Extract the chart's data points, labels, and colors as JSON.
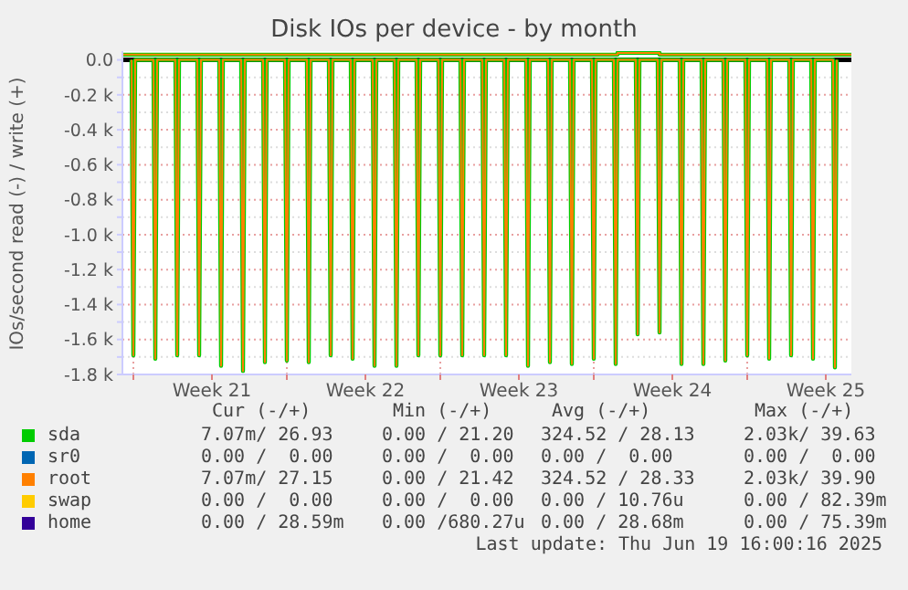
{
  "chart_data": {
    "type": "line",
    "title": "Disk IOs per device - by month",
    "ylabel": "IOs/second read (-) / write (+)",
    "x": [
      "2025-05-18T22:00",
      "2025-05-19T00:00",
      "2025-05-19T02:00",
      "2025-05-19T22:00",
      "2025-05-20T00:00",
      "2025-05-20T02:00",
      "2025-05-20T22:00",
      "2025-05-21T00:00",
      "2025-05-21T02:00",
      "2025-05-21T22:00",
      "2025-05-22T00:00",
      "2025-05-22T02:00",
      "2025-05-22T22:00",
      "2025-05-23T00:00",
      "2025-05-23T02:00",
      "2025-05-23T22:00",
      "2025-05-24T00:00",
      "2025-05-24T02:00",
      "2025-05-24T22:00",
      "2025-05-25T00:00",
      "2025-05-25T02:00",
      "2025-05-25T22:00",
      "2025-05-26T00:00",
      "2025-05-26T02:00",
      "2025-05-26T22:00",
      "2025-05-27T00:00",
      "2025-05-27T02:00",
      "2025-05-27T22:00",
      "2025-05-28T00:00",
      "2025-05-28T02:00",
      "2025-05-28T22:00",
      "2025-05-29T00:00",
      "2025-05-29T02:00",
      "2025-05-29T22:00",
      "2025-05-30T00:00",
      "2025-05-30T02:00",
      "2025-05-30T22:00",
      "2025-05-31T00:00",
      "2025-05-31T02:00",
      "2025-05-31T22:00",
      "2025-06-01T00:00",
      "2025-06-01T02:00",
      "2025-06-01T22:00",
      "2025-06-02T00:00",
      "2025-06-02T02:00",
      "2025-06-02T22:00",
      "2025-06-03T00:00",
      "2025-06-03T02:00",
      "2025-06-03T22:00",
      "2025-06-04T00:00",
      "2025-06-04T02:00",
      "2025-06-04T22:00",
      "2025-06-05T00:00",
      "2025-06-05T02:00",
      "2025-06-05T22:00",
      "2025-06-06T00:00",
      "2025-06-06T02:00",
      "2025-06-06T22:00",
      "2025-06-07T00:00",
      "2025-06-07T02:00",
      "2025-06-07T22:00",
      "2025-06-08T00:00",
      "2025-06-08T02:00",
      "2025-06-08T22:00",
      "2025-06-09T00:00",
      "2025-06-09T02:00",
      "2025-06-09T22:00",
      "2025-06-10T00:00",
      "2025-06-10T02:00",
      "2025-06-10T22:00",
      "2025-06-11T00:00",
      "2025-06-11T02:00",
      "2025-06-11T22:00",
      "2025-06-12T00:00",
      "2025-06-12T02:00",
      "2025-06-12T22:00",
      "2025-06-13T00:00",
      "2025-06-13T02:00",
      "2025-06-13T22:00",
      "2025-06-14T00:00",
      "2025-06-14T02:00",
      "2025-06-14T22:00",
      "2025-06-15T00:00",
      "2025-06-15T02:00",
      "2025-06-15T22:00",
      "2025-06-16T00:00",
      "2025-06-16T02:00",
      "2025-06-16T22:00",
      "2025-06-17T00:00",
      "2025-06-17T02:00",
      "2025-06-17T22:00",
      "2025-06-18T00:00",
      "2025-06-18T02:00",
      "2025-06-18T22:00",
      "2025-06-19T00:00",
      "2025-06-19T02:00",
      "2025-06-19T22:00",
      "2025-06-20T00:00",
      "2025-06-20T02:00"
    ],
    "series": [
      {
        "name": "sda",
        "color": "#00cc00",
        "values": [
          0,
          -1690,
          0,
          0,
          -1710,
          0,
          0,
          -1690,
          0,
          0,
          -1690,
          0,
          0,
          -1750,
          0,
          0,
          -1780,
          0,
          0,
          -1730,
          0,
          0,
          -1720,
          0,
          0,
          -1730,
          0,
          0,
          -1690,
          0,
          0,
          -1710,
          0,
          0,
          -1750,
          0,
          0,
          -1750,
          0,
          0,
          -1690,
          0,
          0,
          -1690,
          0,
          0,
          -1690,
          0,
          0,
          -1690,
          0,
          0,
          -1690,
          0,
          0,
          -1750,
          0,
          0,
          -1730,
          0,
          0,
          -1740,
          0,
          0,
          -1710,
          0,
          0,
          -1740,
          0,
          0,
          -1570,
          0,
          0,
          -1560,
          0,
          0,
          -1740,
          0,
          0,
          -1740,
          0,
          0,
          -1720,
          0,
          0,
          -1690,
          0,
          0,
          -1710,
          0,
          0,
          -1690,
          0,
          0,
          -1710,
          0,
          0,
          -1760,
          0
        ]
      },
      {
        "name": "sr0",
        "color": "#0066b3",
        "values": [
          null,
          null,
          null,
          null,
          null,
          null,
          null,
          null,
          null,
          null,
          null,
          null,
          null,
          null,
          null,
          null,
          null,
          null,
          null,
          null,
          null,
          null,
          null,
          null,
          null,
          null,
          null,
          null,
          null,
          null,
          null,
          null,
          null,
          null,
          null,
          null,
          null,
          null,
          null,
          null,
          null,
          null,
          null,
          null,
          null,
          null,
          null,
          null,
          null,
          null,
          null,
          null,
          null,
          null,
          null,
          null,
          null,
          null,
          null,
          null,
          null,
          null,
          null,
          null,
          null,
          null,
          null,
          null,
          null,
          null,
          null,
          null,
          null,
          null,
          null,
          null,
          null,
          null,
          null,
          null,
          null,
          null,
          null,
          null,
          null,
          null,
          null,
          null,
          null,
          null,
          null,
          null,
          null,
          null,
          null,
          null,
          null,
          null,
          null
        ]
      },
      {
        "name": "root",
        "color": "#ff8000",
        "values": [
          0,
          -1690,
          0,
          0,
          -1710,
          0,
          0,
          -1690,
          0,
          0,
          -1690,
          0,
          0,
          -1750,
          0,
          0,
          -1780,
          0,
          0,
          -1730,
          0,
          0,
          -1720,
          0,
          0,
          -1730,
          0,
          0,
          -1690,
          0,
          0,
          -1710,
          0,
          0,
          -1750,
          0,
          0,
          -1750,
          0,
          0,
          -1690,
          0,
          0,
          -1690,
          0,
          0,
          -1690,
          0,
          0,
          -1690,
          0,
          0,
          -1690,
          0,
          0,
          -1750,
          0,
          0,
          -1730,
          0,
          0,
          -1740,
          0,
          0,
          -1710,
          0,
          0,
          -1740,
          0,
          0,
          -1570,
          0,
          0,
          -1560,
          0,
          0,
          -1740,
          0,
          0,
          -1740,
          0,
          0,
          -1720,
          0,
          0,
          -1690,
          0,
          0,
          -1710,
          0,
          0,
          -1690,
          0,
          0,
          -1710,
          0,
          0,
          -1760,
          0
        ]
      },
      {
        "name": "swap",
        "color": "#ffcc00",
        "values": [
          null,
          null,
          null,
          null,
          null,
          null,
          null,
          null,
          null,
          null,
          null,
          null,
          null,
          null,
          null,
          null,
          null,
          null,
          null,
          null,
          null,
          null,
          null,
          null,
          null,
          null,
          null,
          null,
          null,
          null,
          null,
          null,
          null,
          null,
          null,
          null,
          null,
          null,
          null,
          null,
          null,
          null,
          null,
          null,
          null,
          null,
          null,
          null,
          null,
          null,
          null,
          null,
          null,
          null,
          null,
          null,
          null,
          null,
          null,
          null,
          null,
          null,
          null,
          null,
          null,
          null,
          null,
          null,
          null,
          null,
          null,
          null,
          null,
          null,
          null,
          null,
          null,
          null,
          null,
          null,
          null,
          null,
          null,
          null,
          null,
          null,
          null,
          null,
          null,
          null,
          null,
          null,
          null,
          null,
          null,
          null,
          null,
          null,
          null
        ]
      },
      {
        "name": "home",
        "color": "#330099",
        "values": [
          null,
          null,
          null,
          null,
          null,
          null,
          null,
          null,
          null,
          null,
          null,
          null,
          null,
          null,
          null,
          null,
          null,
          null,
          null,
          null,
          null,
          null,
          null,
          null,
          null,
          null,
          null,
          null,
          null,
          null,
          null,
          null,
          null,
          null,
          null,
          null,
          null,
          null,
          null,
          null,
          null,
          null,
          null,
          null,
          null,
          null,
          null,
          null,
          null,
          null,
          null,
          null,
          null,
          null,
          null,
          null,
          null,
          null,
          null,
          null,
          null,
          null,
          null,
          null,
          null,
          null,
          null,
          null,
          null,
          null,
          null,
          null,
          null,
          null,
          null,
          null,
          null,
          null,
          null,
          null,
          null,
          null,
          null,
          null,
          null,
          null,
          null,
          null,
          null,
          null,
          null,
          null,
          null,
          null,
          null,
          null,
          null,
          null,
          null
        ]
      },
      {
        "color": "#00cc00",
        "x": [
          "2025-05-18T12:00",
          "2025-06-10T02:00",
          "2025-06-10T02:00",
          "2025-06-12T00:00",
          "2025-06-12T00:00",
          "2025-06-20T18:00"
        ],
        "values": [
          30,
          30,
          40,
          40,
          30,
          30
        ]
      },
      {
        "color": "#ff8000",
        "x": [
          "2025-05-18T12:00",
          "2025-06-10T02:00",
          "2025-06-10T02:00",
          "2025-06-12T00:00",
          "2025-06-12T00:00",
          "2025-06-20T18:00"
        ],
        "values": [
          30,
          30,
          40,
          40,
          30,
          30
        ]
      }
    ],
    "xlim": [
      "2025-05-18T12:00",
      "2025-06-20T18:00"
    ],
    "xticks": [
      {
        "value": "2025-05-19T00:00",
        "label": null
      },
      {
        "value": "2025-05-22T14:00",
        "label": "Week 21"
      },
      {
        "value": "2025-05-26T00:00",
        "label": null
      },
      {
        "value": "2025-05-29T14:00",
        "label": "Week 22"
      },
      {
        "value": "2025-06-02T00:00",
        "label": null
      },
      {
        "value": "2025-06-05T14:00",
        "label": "Week 23"
      },
      {
        "value": "2025-06-09T00:00",
        "label": null
      },
      {
        "value": "2025-06-12T14:00",
        "label": "Week 24"
      },
      {
        "value": "2025-06-16T00:00",
        "label": null
      },
      {
        "value": "2025-06-19T14:00",
        "label": "Week 25"
      }
    ],
    "ylim": [
      -1800,
      50
    ],
    "yticks": [
      {
        "value": -1800,
        "label": "-1.8 k"
      },
      {
        "value": -1700,
        "label": null
      },
      {
        "value": -1600,
        "label": "-1.6 k"
      },
      {
        "value": -1500,
        "label": null
      },
      {
        "value": -1400,
        "label": "-1.4 k"
      },
      {
        "value": -1300,
        "label": null
      },
      {
        "value": -1200,
        "label": "-1.2 k"
      },
      {
        "value": -1100,
        "label": null
      },
      {
        "value": -1000,
        "label": "-1.0 k"
      },
      {
        "value": -900,
        "label": null
      },
      {
        "value": -800,
        "label": "-0.8 k"
      },
      {
        "value": -700,
        "label": null
      },
      {
        "value": -600,
        "label": "-0.6 k"
      },
      {
        "value": -500,
        "label": null
      },
      {
        "value": -400,
        "label": "-0.4 k"
      },
      {
        "value": -300,
        "label": null
      },
      {
        "value": -200,
        "label": "-0.2 k"
      },
      {
        "value": -100,
        "label": null
      },
      {
        "value": 0,
        "label": "0.0"
      }
    ],
    "ref_lines": [
      {
        "axis": "y",
        "value": 0,
        "color": "#000000"
      }
    ],
    "grid": true,
    "legend": "bottom",
    "annotations": [
      "Cur (-/+)",
      "Min (-/+)",
      "Avg (-/+)",
      "Max (-/+)",
      "7.07m/ 26.93",
      "0.00 / 21.20",
      "324.52 / 28.13",
      "2.03k/ 39.63",
      "0.00 /  0.00",
      "0.00 /  0.00",
      "0.00 /  0.00",
      "0.00 /  0.00",
      "7.07m/ 27.15",
      "0.00 / 21.42",
      "324.52 / 28.33",
      "2.03k/ 39.90",
      "0.00 /  0.00",
      "0.00 /  0.00",
      "0.00 / 10.76u",
      "0.00 / 82.39m",
      "0.00 / 28.59m",
      "0.00 /680.27u",
      "0.00 / 28.68m",
      "0.00 / 75.39m",
      "Last update: Thu Jun 19 16:00:16 2025"
    ]
  }
}
